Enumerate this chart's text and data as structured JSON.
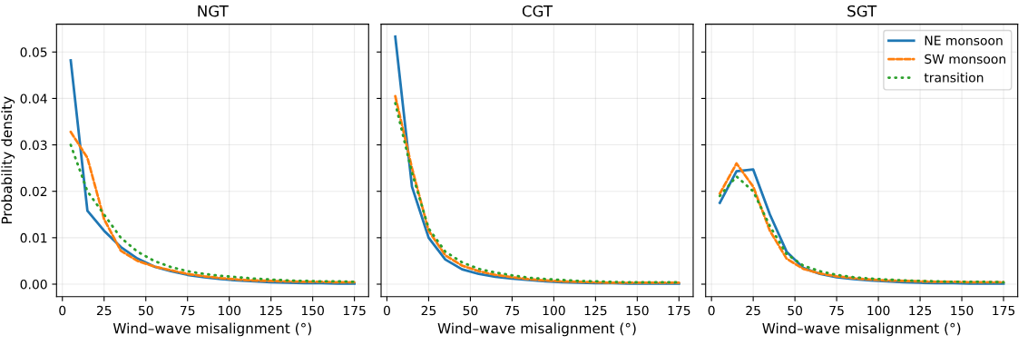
{
  "chart_data": [
    {
      "type": "line",
      "title": "NGT",
      "xlabel": "Wind–wave misalignment (°)",
      "ylabel": "Probability density",
      "x": [
        5,
        15,
        25,
        35,
        45,
        55,
        65,
        75,
        85,
        95,
        105,
        115,
        125,
        135,
        145,
        155,
        165,
        175
      ],
      "xlim": [
        -3.5,
        183.5
      ],
      "xticks": [
        0,
        25,
        50,
        75,
        100,
        125,
        150,
        175
      ],
      "ylim": [
        -0.0027,
        0.056
      ],
      "yticks": [
        {
          "value": 0,
          "label": "0.00"
        },
        {
          "value": 0.01,
          "label": "0.01"
        },
        {
          "value": 0.02,
          "label": "0.02"
        },
        {
          "value": 0.03,
          "label": "0.03"
        },
        {
          "value": 0.04,
          "label": "0.04"
        },
        {
          "value": 0.05,
          "label": "0.05"
        }
      ],
      "grid": true,
      "series": [
        {
          "color": "#1f77b4",
          "line_style": "solid",
          "values": [
            0.0482,
            0.0158,
            0.0115,
            0.008,
            0.0055,
            0.0038,
            0.0028,
            0.002,
            0.0015,
            0.0011,
            0.0008,
            0.0006,
            0.0004,
            0.0003,
            0.0002,
            0.0002,
            0.0001,
            0.0001
          ]
        },
        {
          "color": "#ff7f0e",
          "line_style": "dashed",
          "values": [
            0.0328,
            0.0272,
            0.014,
            0.0072,
            0.005,
            0.0038,
            0.003,
            0.0022,
            0.0017,
            0.0013,
            0.001,
            0.0008,
            0.0007,
            0.0006,
            0.0005,
            0.0005,
            0.0004,
            0.0004
          ]
        },
        {
          "color": "#2ca02c",
          "line_style": "dotted",
          "values": [
            0.03,
            0.02,
            0.015,
            0.01,
            0.007,
            0.005,
            0.0037,
            0.0028,
            0.0022,
            0.0018,
            0.0015,
            0.0012,
            0.001,
            0.0008,
            0.0007,
            0.0006,
            0.0006,
            0.0005
          ]
        }
      ]
    },
    {
      "type": "line",
      "title": "CGT",
      "xlabel": "Wind–wave misalignment (°)",
      "x": [
        5,
        15,
        25,
        35,
        45,
        55,
        65,
        75,
        85,
        95,
        105,
        115,
        125,
        135,
        145,
        155,
        165,
        175
      ],
      "xlim": [
        -3.5,
        183.5
      ],
      "xticks": [
        0,
        25,
        50,
        75,
        100,
        125,
        150,
        175
      ],
      "ylim": [
        -0.0027,
        0.056
      ],
      "yticks": [
        0,
        0.01,
        0.02,
        0.03,
        0.04,
        0.05
      ],
      "tick_labels": "x",
      "grid": true,
      "series": [
        {
          "color": "#1f77b4",
          "line_style": "solid",
          "values": [
            0.0533,
            0.021,
            0.01,
            0.0053,
            0.0032,
            0.0022,
            0.0016,
            0.0012,
            0.0009,
            0.0006,
            0.0004,
            0.0003,
            0.0002,
            0.0002,
            0.0001,
            0.0001,
            0.0001,
            0.0001
          ]
        },
        {
          "color": "#ff7f0e",
          "line_style": "dashed",
          "values": [
            0.0405,
            0.025,
            0.0115,
            0.0062,
            0.004,
            0.0028,
            0.002,
            0.0015,
            0.0011,
            0.0008,
            0.0006,
            0.0005,
            0.0004,
            0.0003,
            0.0003,
            0.0003,
            0.0003,
            0.0003
          ]
        },
        {
          "color": "#2ca02c",
          "line_style": "dotted",
          "values": [
            0.039,
            0.024,
            0.012,
            0.007,
            0.0047,
            0.0033,
            0.0025,
            0.0019,
            0.0014,
            0.0011,
            0.0009,
            0.0007,
            0.0006,
            0.0005,
            0.0004,
            0.0004,
            0.0004,
            0.0004
          ]
        }
      ]
    },
    {
      "type": "line",
      "title": "SGT",
      "xlabel": "Wind–wave misalignment (°)",
      "x": [
        5,
        15,
        25,
        35,
        45,
        55,
        65,
        75,
        85,
        95,
        105,
        115,
        125,
        135,
        145,
        155,
        165,
        175
      ],
      "xlim": [
        -3.5,
        183.5
      ],
      "xticks": [
        0,
        25,
        50,
        75,
        100,
        125,
        150,
        175
      ],
      "ylim": [
        -0.0027,
        0.056
      ],
      "yticks": [
        0,
        0.01,
        0.02,
        0.03,
        0.04,
        0.05
      ],
      "tick_labels": "x",
      "grid": true,
      "legend": "top right",
      "series": [
        {
          "name": "NE monsoon",
          "color": "#1f77b4",
          "line_style": "solid",
          "values": [
            0.0175,
            0.0243,
            0.0247,
            0.015,
            0.007,
            0.0035,
            0.0022,
            0.0015,
            0.0011,
            0.0008,
            0.0006,
            0.0004,
            0.0003,
            0.0002,
            0.0002,
            0.0001,
            0.0001,
            0.0001
          ]
        },
        {
          "name": "SW monsoon",
          "color": "#ff7f0e",
          "line_style": "dashed",
          "values": [
            0.0195,
            0.026,
            0.021,
            0.0115,
            0.0055,
            0.0033,
            0.0023,
            0.0017,
            0.0013,
            0.001,
            0.0008,
            0.0007,
            0.0006,
            0.0005,
            0.0005,
            0.0004,
            0.0004,
            0.0004
          ]
        },
        {
          "name": "transition",
          "color": "#2ca02c",
          "line_style": "dotted",
          "values": [
            0.019,
            0.0232,
            0.02,
            0.0125,
            0.0065,
            0.004,
            0.0028,
            0.002,
            0.0015,
            0.0012,
            0.001,
            0.0008,
            0.0007,
            0.0006,
            0.0005,
            0.0005,
            0.0005,
            0.0004
          ]
        }
      ]
    }
  ]
}
